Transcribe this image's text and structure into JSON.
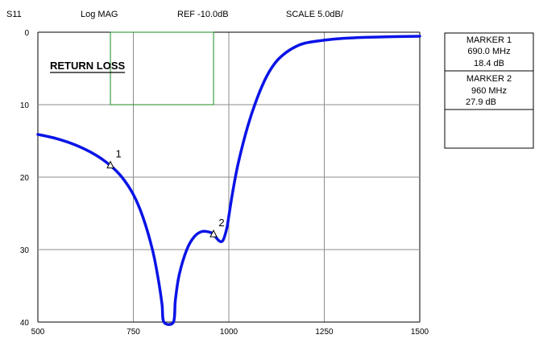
{
  "header": {
    "param": "S11",
    "format": "Log MAG",
    "ref": "REF -10.0dB",
    "scale": "SCALE 5.0dB/"
  },
  "chart_data": {
    "type": "line",
    "title": "RETURN LOSS",
    "xlim": [
      500,
      1500
    ],
    "ylim": [
      0,
      40
    ],
    "y_inverted": true,
    "x_ticks": [
      "500",
      "750",
      "1000",
      "1250",
      "1500"
    ],
    "y_ticks": [
      "0",
      "10",
      "20",
      "30",
      "40"
    ],
    "grid": true,
    "series": [
      {
        "color": "#0a14e6",
        "points": [
          [
            500,
            14.1
          ],
          [
            550,
            14.7
          ],
          [
            600,
            15.6
          ],
          [
            650,
            16.9
          ],
          [
            690,
            18.4
          ],
          [
            720,
            20.0
          ],
          [
            750,
            22.4
          ],
          [
            775,
            25.5
          ],
          [
            800,
            30.0
          ],
          [
            815,
            34.0
          ],
          [
            825,
            37.5
          ],
          [
            830,
            40.0
          ],
          [
            855,
            40.0
          ],
          [
            860,
            37.0
          ],
          [
            870,
            33.5
          ],
          [
            890,
            30.0
          ],
          [
            910,
            28.2
          ],
          [
            930,
            27.5
          ],
          [
            950,
            27.6
          ],
          [
            960,
            27.9
          ],
          [
            975,
            28.8
          ],
          [
            985,
            28.7
          ],
          [
            995,
            27.0
          ],
          [
            1000,
            25.4
          ],
          [
            1010,
            22.1
          ],
          [
            1025,
            18.0
          ],
          [
            1050,
            12.9
          ],
          [
            1075,
            9.0
          ],
          [
            1100,
            6.0
          ],
          [
            1125,
            4.0
          ],
          [
            1150,
            2.8
          ],
          [
            1175,
            2.0
          ],
          [
            1200,
            1.5
          ],
          [
            1250,
            1.1
          ],
          [
            1300,
            0.85
          ],
          [
            1350,
            0.72
          ],
          [
            1400,
            0.65
          ],
          [
            1450,
            0.6
          ],
          [
            1500,
            0.55
          ]
        ]
      }
    ],
    "band": {
      "x1": 690,
      "x2": 960,
      "y_top": 0,
      "y_bottom": 10,
      "color": "#1e8c1e"
    },
    "markers": [
      {
        "id": "1",
        "x": 690,
        "y": 18.4
      },
      {
        "id": "2",
        "x": 960,
        "y": 27.9
      }
    ]
  },
  "marker_box": {
    "m1": {
      "title": "MARKER 1",
      "freq": "690.0 MHz",
      "value": "18.4 dB"
    },
    "m2": {
      "title": "MARKER 2",
      "freq": "960 MHz",
      "value": "27.9 dB"
    }
  }
}
